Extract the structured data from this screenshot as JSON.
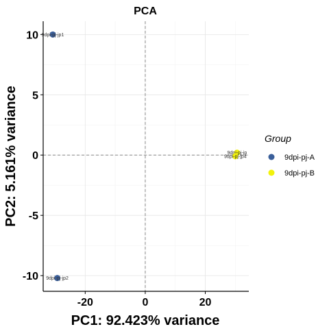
{
  "chart_data": {
    "type": "scatter",
    "title": "PCA",
    "xlabel": "PC1: 92.423% variance",
    "ylabel": "PC2: 5.161% variance",
    "xlim": [
      -34,
      34.5
    ],
    "ylim": [
      -11.3,
      11.1
    ],
    "xticks": [
      -20,
      0,
      20
    ],
    "yticks": [
      -10,
      -5,
      0,
      5,
      10
    ],
    "grid": true,
    "reference_lines": {
      "x": 0,
      "y": 0,
      "style": "dashed"
    },
    "legend": {
      "title": "Group",
      "position": "right",
      "entries": [
        {
          "label": "9dpi-pj-A",
          "color": "#3B5F9A"
        },
        {
          "label": "9dpi-pj-B",
          "color": "#F2F20C"
        }
      ]
    },
    "series": [
      {
        "name": "9dpi-pj-A",
        "color": "#3B5F9A",
        "points": [
          {
            "x": -30.8,
            "y": 10.0,
            "label": "9dpi-pj-jp1"
          },
          {
            "x": -29.3,
            "y": -10.2,
            "label": "9dpi-pj-jp2"
          }
        ]
      },
      {
        "name": "9dpi-pj-B",
        "color": "#F2F20C",
        "points": [
          {
            "x": 30.6,
            "y": 0.2,
            "label": "9dpi-pj-jp"
          },
          {
            "x": 30.0,
            "y": -0.1,
            "label": "9dpi-pj-jp4"
          }
        ]
      }
    ]
  }
}
